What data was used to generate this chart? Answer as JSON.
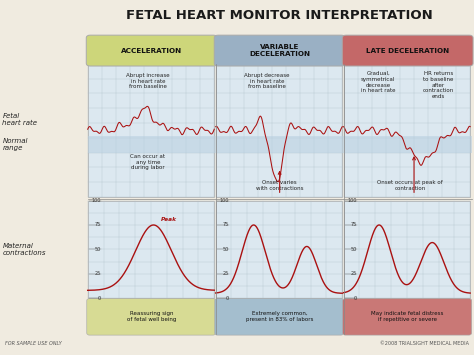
{
  "title": "FETAL HEART MONITOR INTERPRETATION",
  "bg_color": "#f0ebe0",
  "grid_bg": "#dce8f0",
  "normal_range_color": "#b8cfe0",
  "col_headers": [
    "ACCELERATION",
    "VARIABLE\nDECELERATION",
    "LATE DECELERATION"
  ],
  "col_header_colors": [
    "#cdd67a",
    "#9ab0c4",
    "#c46868"
  ],
  "bottom_notes": [
    "Reassuring sign\nof fetal well being",
    "Extremely common,\npresent in 83% of labors",
    "May indicate fetal distress\nif repetitive or severe"
  ],
  "bottom_note_colors": [
    "#d4d98a",
    "#9ab8cc",
    "#c46868"
  ],
  "contraction_yticks": [
    0,
    25,
    50,
    75,
    100
  ],
  "footer_left": "FOR SAMPLE USE ONLY",
  "footer_right": "©2008 TRIALSIGHT MEDICAL MEDIA",
  "line_color": "#aa1111",
  "grid_line_color": "#b0c0cc",
  "divider_color": "#888888"
}
